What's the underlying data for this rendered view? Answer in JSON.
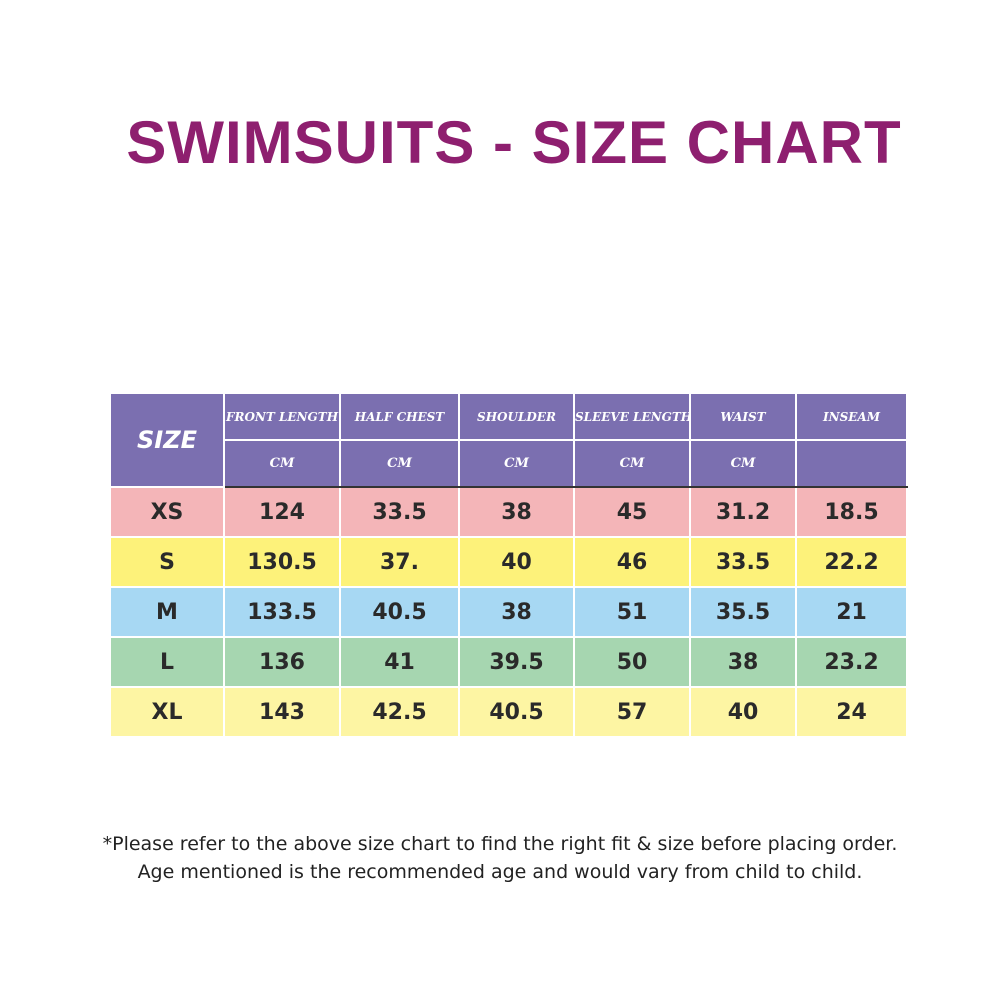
{
  "title": "SWIMSUITS - SIZE CHART",
  "colors": {
    "title": "#8e1f6f",
    "header_bg": "#7b6fb0",
    "row_xs": "#f4b5b8",
    "row_s": "#fdf27a",
    "row_m": "#a7d8f3",
    "row_l": "#a6d6b0",
    "row_xl": "#fdf5a3"
  },
  "table": {
    "size_header": "SIZE",
    "columns": [
      {
        "name": "FRONT LENGTH",
        "unit": "CM"
      },
      {
        "name": "HALF CHEST",
        "unit": "CM"
      },
      {
        "name": "SHOULDER",
        "unit": "CM"
      },
      {
        "name": "SLEEVE LENGTH",
        "unit": "CM"
      },
      {
        "name": "WAIST",
        "unit": "CM"
      },
      {
        "name": "INSEAM",
        "unit": ""
      }
    ],
    "rows": [
      {
        "size": "XS",
        "values": [
          "124",
          "33.5",
          "38",
          "45",
          "31.2",
          "18.5"
        ]
      },
      {
        "size": "S",
        "values": [
          "130.5",
          "37.",
          "40",
          "46",
          "33.5",
          "22.2"
        ]
      },
      {
        "size": "M",
        "values": [
          "133.5",
          "40.5",
          "38",
          "51",
          "35.5",
          "21"
        ]
      },
      {
        "size": "L",
        "values": [
          "136",
          "41",
          "39.5",
          "50",
          "38",
          "23.2"
        ]
      },
      {
        "size": "XL",
        "values": [
          "143",
          "42.5",
          "40.5",
          "57",
          "40",
          "24"
        ]
      }
    ]
  },
  "footnote": {
    "line1": "*Please refer to the above size chart to find the right fit & size before placing order.",
    "line2": "Age mentioned is the recommended age and would vary from child to child."
  }
}
